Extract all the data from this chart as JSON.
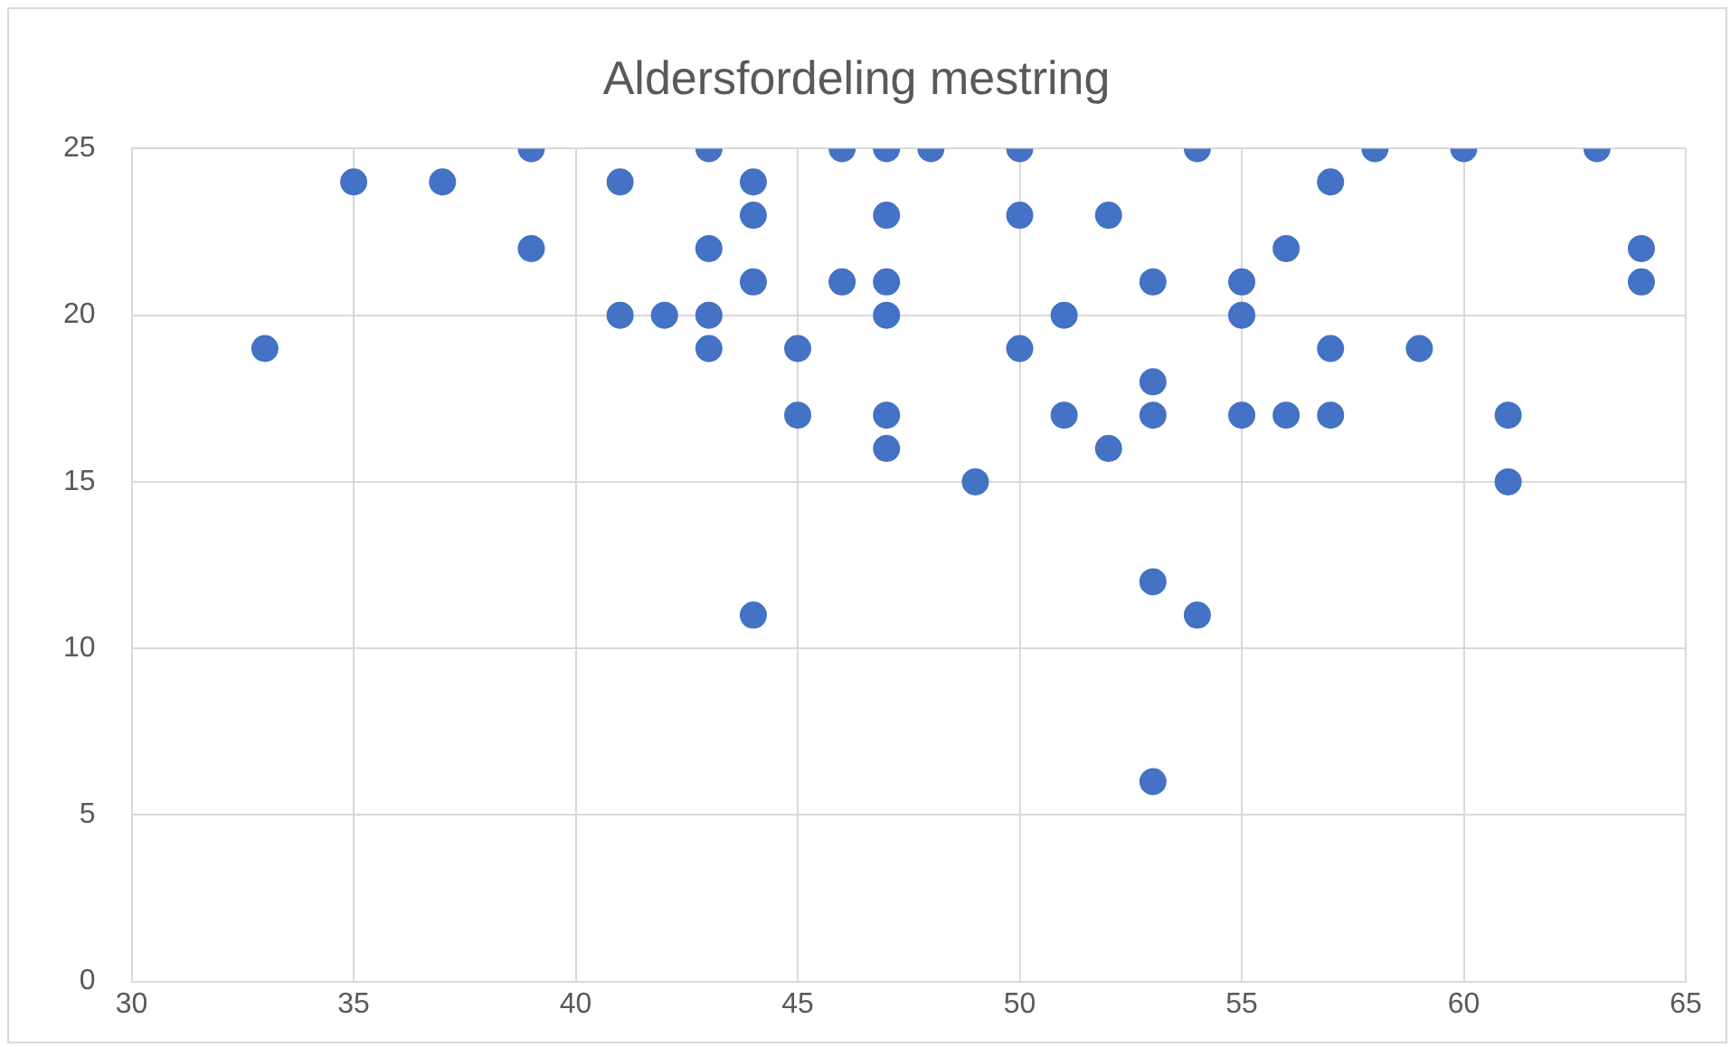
{
  "chart_data": {
    "type": "scatter",
    "title": "Aldersfordeling mestring",
    "x": [
      33,
      35,
      37,
      39,
      39,
      41,
      41,
      42,
      43,
      43,
      43,
      43,
      44,
      44,
      44,
      44,
      45,
      45,
      46,
      46,
      47,
      47,
      47,
      47,
      47,
      47,
      48,
      49,
      50,
      50,
      50,
      51,
      51,
      52,
      52,
      53,
      53,
      53,
      53,
      53,
      54,
      54,
      55,
      55,
      55,
      56,
      56,
      57,
      57,
      57,
      58,
      59,
      60,
      61,
      61,
      63,
      64,
      64
    ],
    "values": [
      19,
      24,
      24,
      25,
      22,
      24,
      20,
      20,
      25,
      22,
      20,
      19,
      24,
      23,
      21,
      11,
      19,
      17,
      25,
      21,
      25,
      23,
      21,
      20,
      17,
      16,
      25,
      15,
      25,
      23,
      19,
      20,
      17,
      23,
      16,
      21,
      18,
      17,
      12,
      6,
      25,
      11,
      21,
      20,
      17,
      22,
      17,
      24,
      19,
      17,
      25,
      19,
      25,
      17,
      15,
      25,
      22,
      21
    ],
    "color": "#4472c4",
    "marker": "circle",
    "xlim": [
      30,
      65
    ],
    "xticks": [
      30,
      35,
      40,
      45,
      50,
      55,
      60,
      65
    ],
    "ylim": [
      0,
      25
    ],
    "yticks": [
      0,
      5,
      10,
      15,
      20,
      25
    ],
    "grid": true,
    "legend": false
  }
}
